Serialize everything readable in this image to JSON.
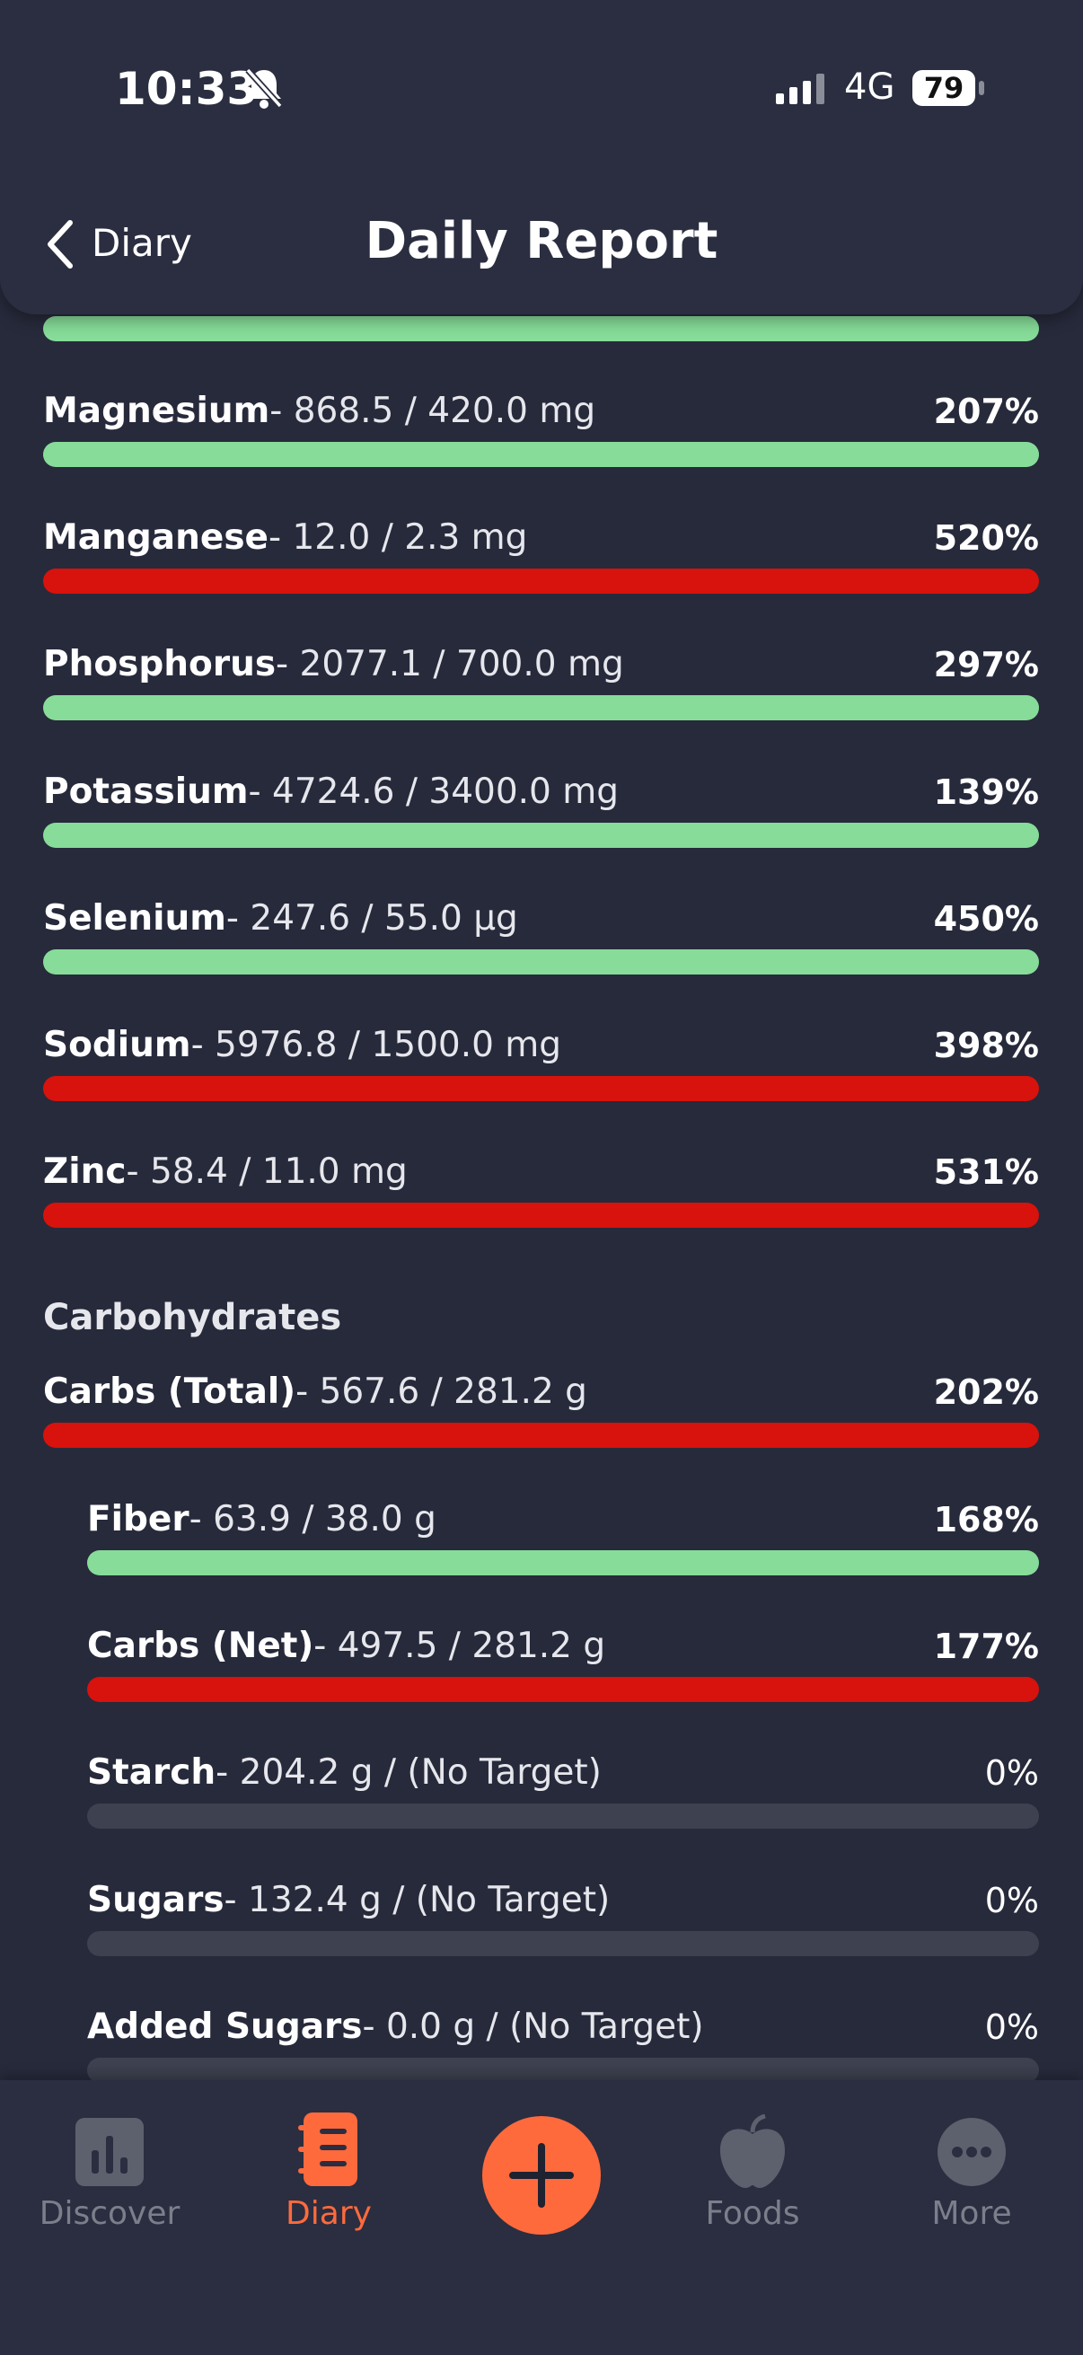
{
  "status_bar": {
    "time": "10:33",
    "network": "4G",
    "battery": "79"
  },
  "header": {
    "back": "Diary",
    "title": "Daily Report"
  },
  "nutrients": [
    {
      "name": "Magnesium",
      "detail": "- 868.5 / 420.0 mg",
      "percent": "207%",
      "color": "#86dc98"
    },
    {
      "name": "Manganese",
      "detail": "- 12.0 / 2.3 mg",
      "percent": "520%",
      "color": "#d8120c"
    },
    {
      "name": "Phosphorus",
      "detail": "- 2077.1 / 700.0 mg",
      "percent": "297%",
      "color": "#86dc98"
    },
    {
      "name": "Potassium",
      "detail": "- 4724.6 / 3400.0 mg",
      "percent": "139%",
      "color": "#86dc98"
    },
    {
      "name": "Selenium",
      "detail": "- 247.6 / 55.0 µg",
      "percent": "450%",
      "color": "#86dc98"
    },
    {
      "name": "Sodium",
      "detail": "- 5976.8 / 1500.0 mg",
      "percent": "398%",
      "color": "#d8120c"
    },
    {
      "name": "Zinc",
      "detail": "- 58.4 / 11.0 mg",
      "percent": "531%",
      "color": "#d8120c"
    }
  ],
  "carbohydrates": {
    "title": "Carbohydrates",
    "total": {
      "name": "Carbs (Total)",
      "detail": "- 567.6 / 281.2 g",
      "percent": "202%",
      "color": "#d8120c"
    },
    "components": [
      {
        "name": "Fiber",
        "detail": "- 63.9 / 38.0 g",
        "percent": "168%",
        "color": "#86dc98"
      },
      {
        "name": "Carbs (Net)",
        "detail": "- 497.5 / 281.2 g",
        "percent": "177%",
        "color": "#d8120c"
      },
      {
        "name": "Starch",
        "detail": "- 204.2 g / (No Target)",
        "percent": "0%",
        "color": "#3d4150"
      },
      {
        "name": "Sugars",
        "detail": "- 132.4 g / (No Target)",
        "percent": "0%",
        "color": "#3d4150"
      },
      {
        "name": "Added Sugars",
        "detail": "- 0.0 g / (No Target)",
        "percent": "0%",
        "color": "#3d4150"
      }
    ]
  },
  "nav": {
    "items": [
      {
        "label": "Discover",
        "color": "#7b7f8b"
      },
      {
        "label": "Diary",
        "color": "#ff6a3d"
      },
      {
        "label": "Foods",
        "color": "#7b7f8b"
      },
      {
        "label": "More",
        "color": "#7b7f8b"
      }
    ]
  }
}
